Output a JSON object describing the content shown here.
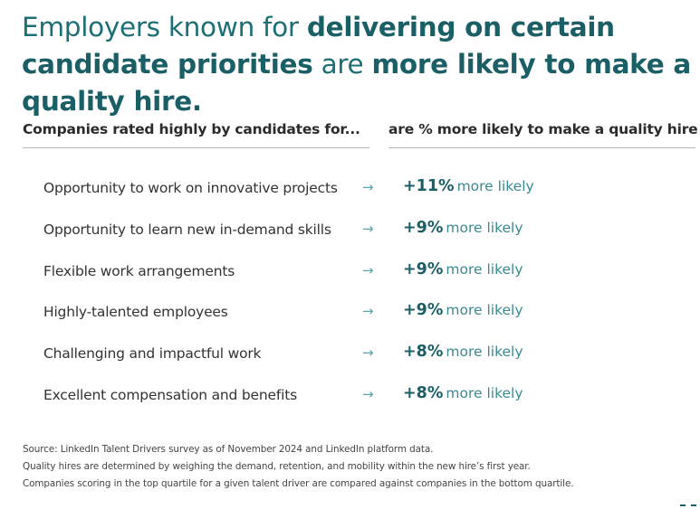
{
  "headline": {
    "part1": "Employers known for ",
    "part2": "delivering on certain candidate priorities",
    "part3": " are ",
    "part4": "more likely to make a quality hire."
  },
  "table": {
    "left_header": "Companies rated highly by candidates for...",
    "right_header": "are % more likely to make a quality hire",
    "arrow": "→",
    "rows": [
      {
        "label": "Opportunity to work on innovative projects",
        "pct": "+11%",
        "suffix": "more likely"
      },
      {
        "label": "Opportunity to learn new in-demand skills",
        "pct": "+9%",
        "suffix": "more likely"
      },
      {
        "label": "Flexible work arrangements",
        "pct": "+9%",
        "suffix": "more likely"
      },
      {
        "label": "Highly-talented employees",
        "pct": "+9%",
        "suffix": "more likely"
      },
      {
        "label": "Challenging and impactful work",
        "pct": "+8%",
        "suffix": "more likely"
      },
      {
        "label": "Excellent compensation and benefits",
        "pct": "+8%",
        "suffix": "more likely"
      }
    ]
  },
  "footnotes": [
    "Source: LinkedIn Talent Drivers survey as of November 2024 and LinkedIn platform data.",
    "Quality hires are determined by weighing the demand, retention, and mobility within the new hire’s first year.",
    "Companies scoring in the top quartile for a given talent driver are compared against companies in the bottom quartile."
  ],
  "colors": {
    "headline_teal": "#1b6f75",
    "headline_bold": "#1a5f66",
    "arrow": "#5aa7ae",
    "suffix": "#3a8a92"
  }
}
